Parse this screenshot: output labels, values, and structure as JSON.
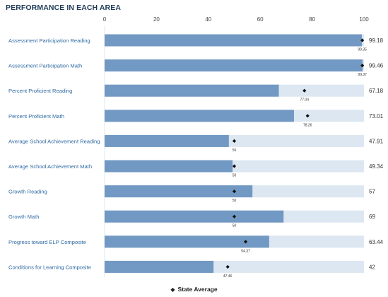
{
  "title": "PERFORMANCE IN EACH AREA",
  "colors": {
    "bar": "#7299c3",
    "track": "#dce7f2",
    "marker": "#111111",
    "label": "#2f6aa3"
  },
  "chart_data": {
    "type": "bar",
    "orientation": "horizontal",
    "title": "PERFORMANCE IN EACH AREA",
    "xlim": [
      0,
      100
    ],
    "ticks": [
      0,
      20,
      40,
      60,
      80,
      100
    ],
    "grid": false,
    "categories": [
      "Assessment Participation Reading",
      "Assessment Participation Math",
      "Percent Proficient Reading",
      "Percent Proficient Math",
      "Average School Achievement Reading",
      "Average School Achievement Math",
      "Growth Reading",
      "Growth Math",
      "Progress toward ELP Composite",
      "Conditions for Learning Composite"
    ],
    "values": [
      99.18,
      99.46,
      67.18,
      73.01,
      47.91,
      49.34,
      57,
      69,
      63.44,
      42
    ],
    "value_labels": [
      "99.18",
      "99.46",
      "67.18",
      "73.01",
      "47.91",
      "49.34",
      "57",
      "69",
      "63.44",
      "42"
    ],
    "state_average": [
      99.35,
      99.37,
      77.04,
      78.26,
      50,
      50,
      50,
      50,
      54.37,
      47.46
    ],
    "state_average_labels": [
      "99.35",
      "99.37",
      "77.04",
      "78.26",
      "50",
      "50",
      "50",
      "50",
      "54.37",
      "47.46"
    ],
    "legend": {
      "label": "State Average",
      "marker": "◆",
      "placement": "bottom-center"
    }
  }
}
